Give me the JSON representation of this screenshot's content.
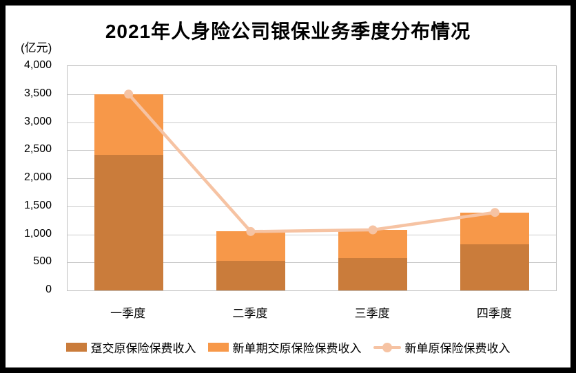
{
  "title": "2021年人身险公司银保业务季度分布情况",
  "unit_label": "(亿元)",
  "chart_data": {
    "type": "bar",
    "subtype": "stacked-bars-with-line-overlay",
    "title": "2021年人身险公司银保业务季度分布情况",
    "ylabel": "(亿元)",
    "categories": [
      "一季度",
      "二季度",
      "三季度",
      "四季度"
    ],
    "series": [
      {
        "name": "趸交原保险保费收入",
        "type": "bar",
        "color": "#CA7C3B",
        "values": [
          2420,
          530,
          580,
          820
        ]
      },
      {
        "name": "新单期交原保险保费收入",
        "type": "bar",
        "color": "#F79849",
        "values": [
          1080,
          520,
          500,
          570
        ]
      },
      {
        "name": "新单原保险保费收入",
        "type": "line",
        "color": "#F6C3A3",
        "values": [
          3500,
          1050,
          1080,
          1390
        ]
      }
    ],
    "ylim": [
      0,
      4000
    ],
    "ytick_step": 500,
    "ytick_labels": [
      "0",
      "500",
      "1,000",
      "1,500",
      "2,000",
      "2,500",
      "3,000",
      "3,500",
      "4,000"
    ],
    "grid": "horizontal",
    "legend_position": "bottom"
  }
}
